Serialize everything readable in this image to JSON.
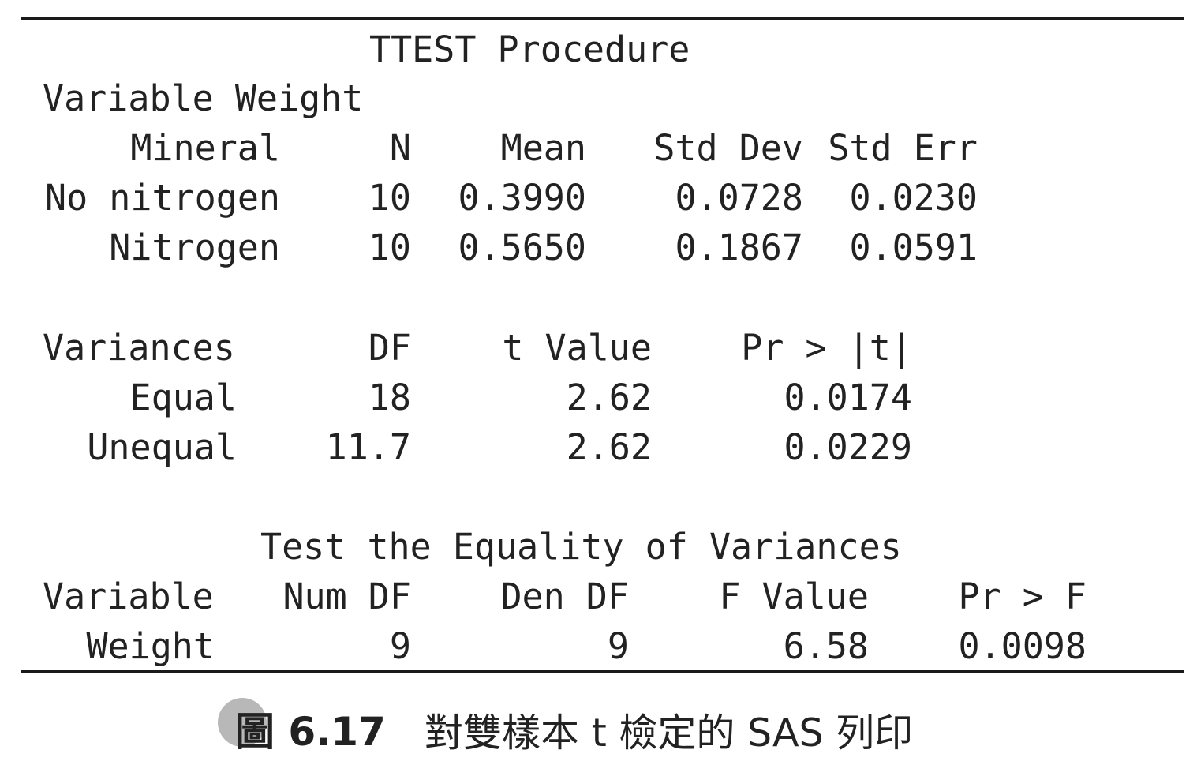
{
  "procedure_title": "TTEST Procedure",
  "variable_line": "Variable Weight",
  "stats_table": {
    "headers": [
      "Mineral",
      "N",
      "Mean",
      "Std Dev",
      "Std Err"
    ],
    "rows": [
      [
        "No nitrogen",
        "10",
        "0.3990",
        "0.0728",
        "0.0230"
      ],
      [
        "Nitrogen",
        "10",
        "0.5650",
        "0.1867",
        "0.0591"
      ]
    ]
  },
  "ttest_table": {
    "headers": [
      "Variances",
      "DF",
      "t Value",
      "Pr > |t|"
    ],
    "rows": [
      [
        "Equal",
        "18",
        "2.62",
        "0.0174"
      ],
      [
        "Unequal",
        "11.7",
        "2.62",
        "0.0229"
      ]
    ]
  },
  "equality_title": "Test the Equality of Variances",
  "equality_table": {
    "headers": [
      "Variable",
      "Num DF",
      "Den DF",
      "F Value",
      "Pr > F"
    ],
    "rows": [
      [
        "Weight",
        "9",
        "9",
        "6.58",
        "0.0098"
      ]
    ]
  },
  "caption": {
    "label": "圖 6.17",
    "title": "對雙樣本 t 檢定的 SAS 列印"
  }
}
